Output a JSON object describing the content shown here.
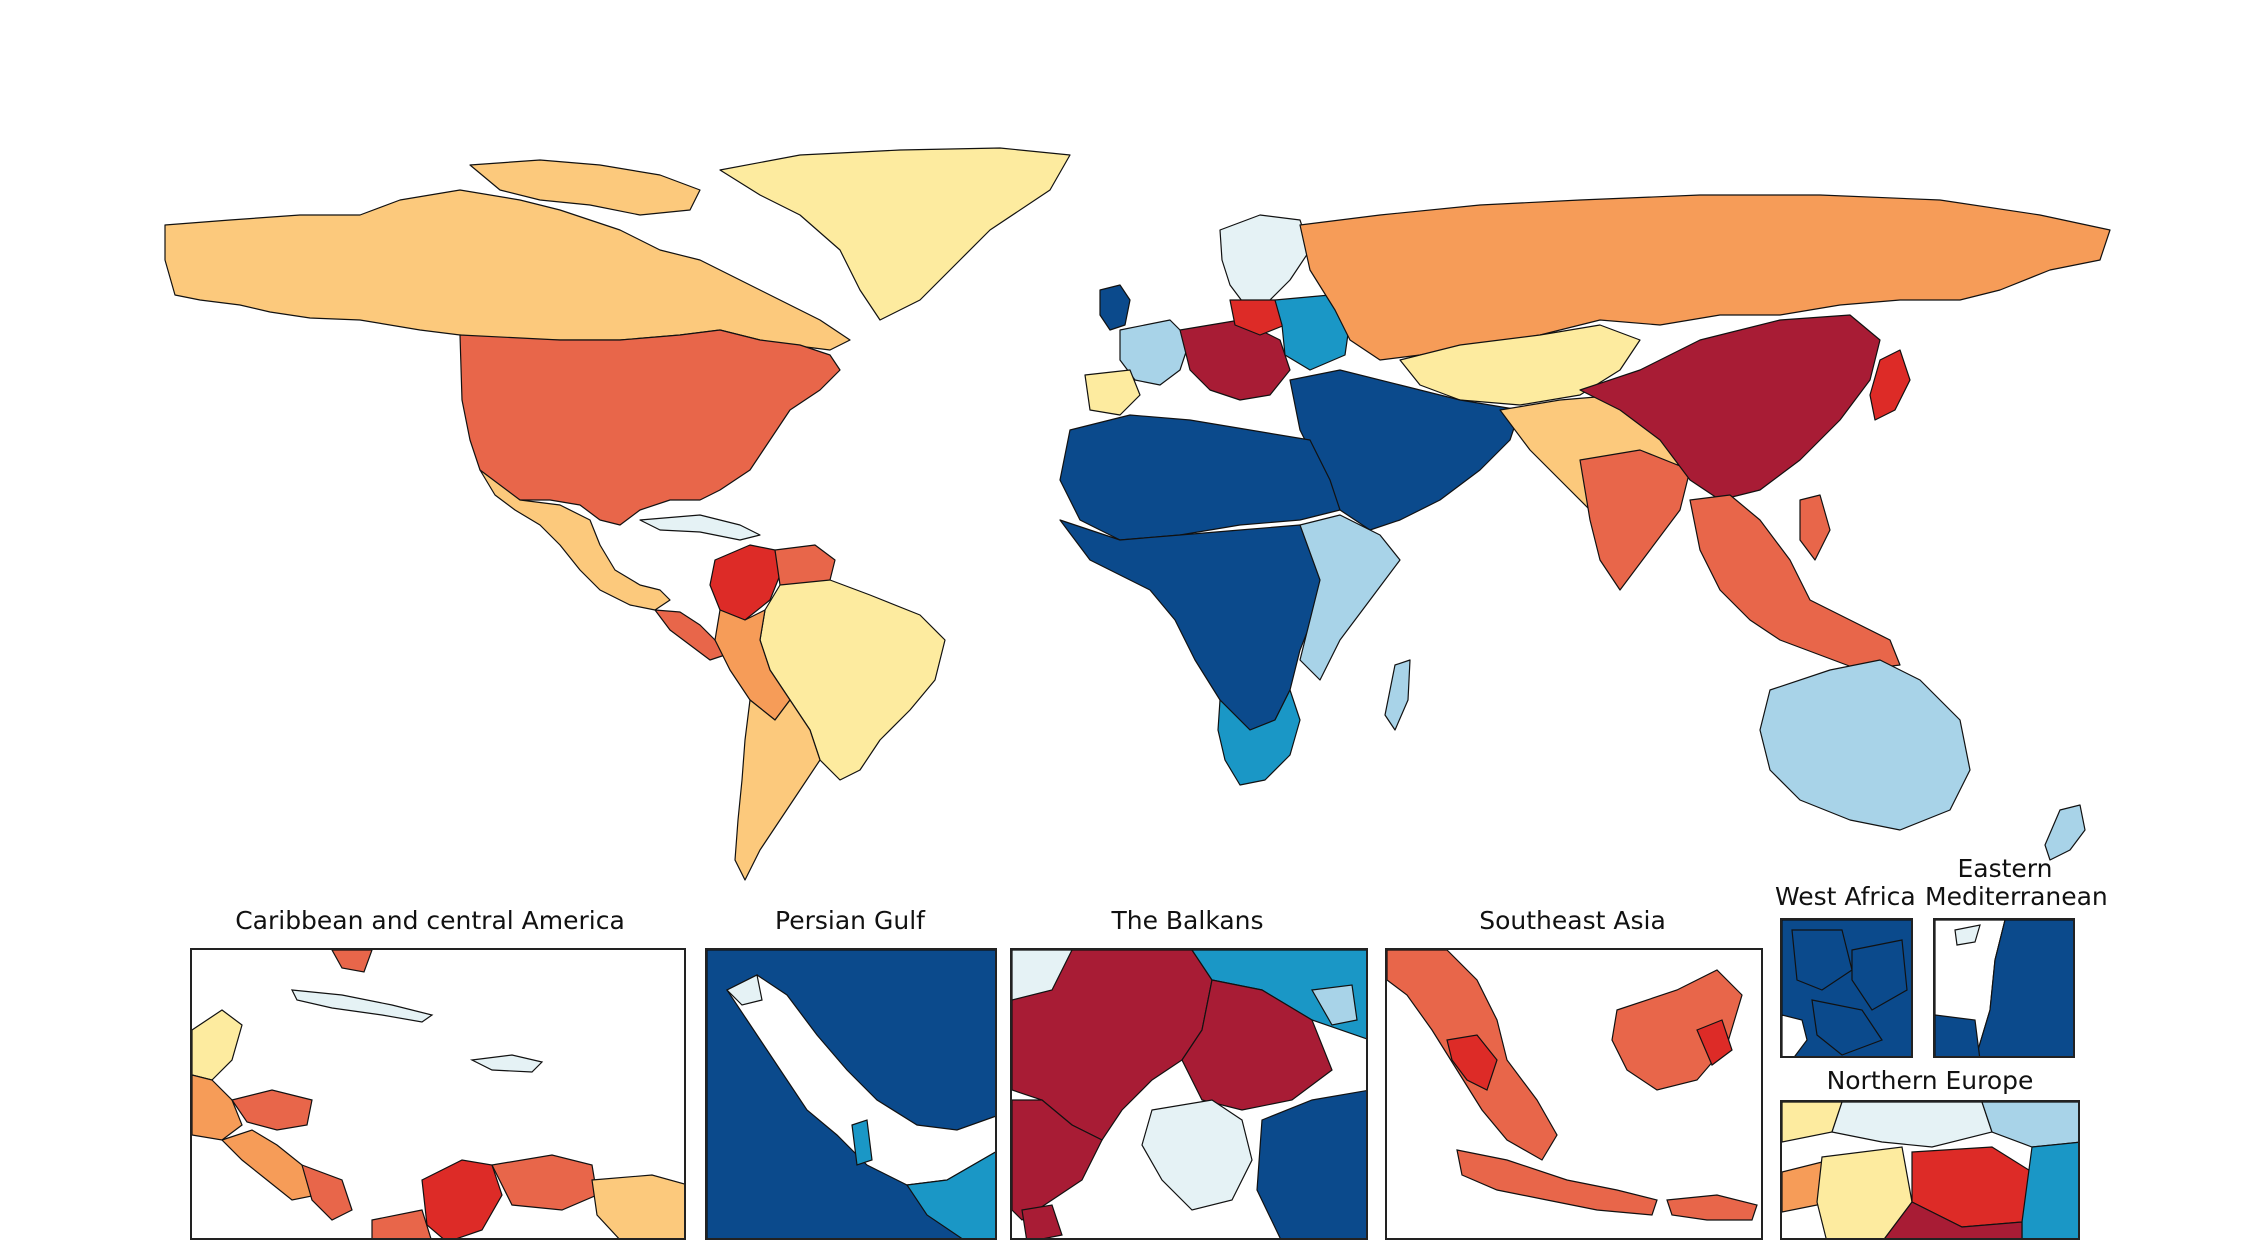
{
  "palette": {
    "dark_blue": "#0b4a8c",
    "mid_blue": "#1a97c6",
    "light_blue": "#a8d3e8",
    "pale_blue": "#e5f2f5",
    "pale_yellow": "#fdeb9f",
    "light_orange": "#fcc97c",
    "orange": "#f69c58",
    "red_orange": "#e8664a",
    "red": "#dd2b27",
    "dark_red": "#a81c35",
    "border": "#111111",
    "ocean": "#ffffff"
  },
  "regions": {
    "north_america": "light_orange",
    "us_states": "red_orange",
    "greenland": "pale_yellow",
    "central_america": "red_orange",
    "caribbean": "pale_blue",
    "colombia": "red",
    "venezuela": "red_orange",
    "brazil": "pale_yellow",
    "andes": "orange",
    "southern_cone": "light_orange",
    "russia": "orange",
    "scandinavia": "pale_blue",
    "western_europe": "light_blue",
    "central_europe": "dark_red",
    "poland": "red",
    "eastern_europe": "mid_blue",
    "central_asia": "pale_yellow",
    "middle_east": "dark_blue",
    "north_africa": "dark_blue",
    "sub_saharan_africa": "dark_blue",
    "east_africa": "light_blue",
    "southern_africa": "mid_blue",
    "south_asia": "light_orange",
    "india_states": "red_orange",
    "china": "dark_red",
    "japan": "red",
    "southeast_asia": "red_orange",
    "australia": "light_blue",
    "new_zealand": "light_blue"
  },
  "insets": [
    {
      "id": "caribbean",
      "title": "Caribbean and central America"
    },
    {
      "id": "persian_gulf",
      "title": "Persian Gulf"
    },
    {
      "id": "balkans",
      "title": "The Balkans"
    },
    {
      "id": "southeast_asia",
      "title": "Southeast Asia"
    },
    {
      "id": "west_africa",
      "title": "West Africa"
    },
    {
      "id": "eastern_mediterranean",
      "title_line1": "Eastern",
      "title_line2": "Mediterranean"
    },
    {
      "id": "northern_europe",
      "title": "Northern Europe"
    }
  ]
}
